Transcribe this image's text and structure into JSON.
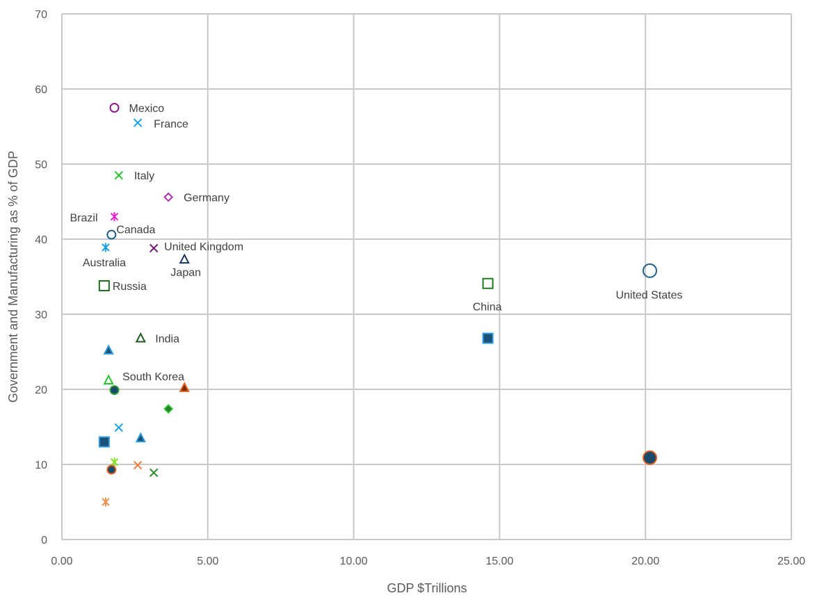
{
  "chart_data": {
    "type": "scatter",
    "title": "",
    "xlabel": "GDP $Trillions",
    "ylabel": "Government and Manufacturing as % of GDP",
    "xlim": [
      0,
      25
    ],
    "ylim": [
      0,
      70
    ],
    "x_ticks": [
      "0.00",
      "5.00",
      "10.00",
      "15.00",
      "20.00",
      "25.00"
    ],
    "y_ticks": [
      "0",
      "10",
      "20",
      "30",
      "40",
      "50",
      "60",
      "70"
    ],
    "grid": true,
    "legend": "none",
    "series": [
      {
        "points": [
          {
            "x": 1.8,
            "y": 57.5,
            "label": "Mexico",
            "marker": "circle",
            "fill": "none",
            "stroke": "#8b1a8b"
          },
          {
            "x": 2.6,
            "y": 55.5,
            "label": "France",
            "marker": "x",
            "fill": "none",
            "stroke": "#1aa0e8"
          },
          {
            "x": 1.95,
            "y": 48.5,
            "label": "Italy",
            "marker": "x",
            "fill": "none",
            "stroke": "#22c42a"
          },
          {
            "x": 3.65,
            "y": 45.6,
            "label": "Germany",
            "marker": "diamond",
            "fill": "none",
            "stroke": "#b02cb0"
          },
          {
            "x": 1.8,
            "y": 43.0,
            "label": "Brazil",
            "marker": "asterisk",
            "fill": "none",
            "stroke": "#e020d0"
          },
          {
            "x": 1.7,
            "y": 40.6,
            "label": "Canada",
            "marker": "circle",
            "fill": "none",
            "stroke": "#1c5f88"
          },
          {
            "x": 1.5,
            "y": 38.9,
            "label": "Australia",
            "marker": "asterisk",
            "fill": "none",
            "stroke": "#1aa0e8"
          },
          {
            "x": 3.15,
            "y": 38.8,
            "label": "United Kingdom",
            "marker": "x",
            "fill": "none",
            "stroke": "#6d1770"
          },
          {
            "x": 4.2,
            "y": 37.3,
            "label": "Japan",
            "marker": "triangle",
            "fill": "none",
            "stroke": "#17365d"
          },
          {
            "x": 1.45,
            "y": 33.8,
            "label": "Russia",
            "marker": "square",
            "fill": "none",
            "stroke": "#1e6a1e"
          },
          {
            "x": 14.6,
            "y": 34.1,
            "label": "China",
            "marker": "square",
            "fill": "none",
            "stroke": "#1e7a1e"
          },
          {
            "x": 20.15,
            "y": 35.8,
            "label": "United States",
            "marker": "circle-large",
            "fill": "none",
            "stroke": "#1c5f88"
          },
          {
            "x": 2.7,
            "y": 26.8,
            "label": "India",
            "marker": "triangle",
            "fill": "none",
            "stroke": "#1e5a1e"
          },
          {
            "x": 1.6,
            "y": 21.2,
            "label": "South Korea",
            "marker": "triangle",
            "fill": "none",
            "stroke": "#22c42a"
          }
        ]
      },
      {
        "points": [
          {
            "x": 14.6,
            "y": 26.8,
            "label": "",
            "marker": "square",
            "fill": "#1a5276",
            "stroke": "#2e9be0"
          },
          {
            "x": 1.6,
            "y": 25.2,
            "label": "",
            "marker": "triangle",
            "fill": "#1a5276",
            "stroke": "#2e9be0"
          },
          {
            "x": 4.2,
            "y": 20.2,
            "label": "",
            "marker": "triangle",
            "fill": "#7a2a0c",
            "stroke": "#e06020"
          },
          {
            "x": 1.8,
            "y": 19.9,
            "label": "",
            "marker": "circle",
            "fill": "#1a4a6a",
            "stroke": "#2e9e2e"
          },
          {
            "x": 3.65,
            "y": 17.4,
            "label": "",
            "marker": "diamond",
            "fill": "#2e7a2e",
            "stroke": "#22c42a"
          },
          {
            "x": 1.95,
            "y": 14.9,
            "label": "",
            "marker": "x",
            "fill": "none",
            "stroke": "#1aa0e8"
          },
          {
            "x": 1.45,
            "y": 13.0,
            "label": "",
            "marker": "square",
            "fill": "#1a5276",
            "stroke": "#2e9be0"
          },
          {
            "x": 2.7,
            "y": 13.5,
            "label": "",
            "marker": "triangle",
            "fill": "#1a5276",
            "stroke": "#2e9be0"
          },
          {
            "x": 20.15,
            "y": 10.9,
            "label": "",
            "marker": "circle-large",
            "fill": "#1a4a6a",
            "stroke": "#e06020"
          },
          {
            "x": 1.8,
            "y": 10.3,
            "label": "",
            "marker": "asterisk",
            "fill": "none",
            "stroke": "#8ce02a"
          },
          {
            "x": 2.6,
            "y": 9.9,
            "label": "",
            "marker": "x",
            "fill": "none",
            "stroke": "#f07a3a"
          },
          {
            "x": 1.7,
            "y": 9.3,
            "label": "",
            "marker": "circle",
            "fill": "#1a4a6a",
            "stroke": "#e06020"
          },
          {
            "x": 3.15,
            "y": 8.9,
            "label": "",
            "marker": "x",
            "fill": "none",
            "stroke": "#2e8a2e"
          },
          {
            "x": 1.5,
            "y": 5.0,
            "label": "",
            "marker": "asterisk",
            "fill": "none",
            "stroke": "#f0904a"
          }
        ]
      }
    ]
  }
}
